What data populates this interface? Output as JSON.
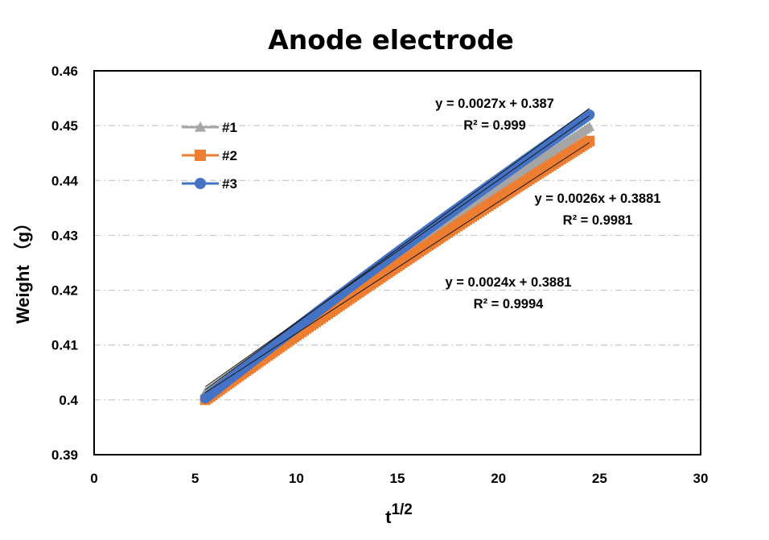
{
  "chart_data": {
    "type": "scatter",
    "title": "Anode electrode",
    "xlabel_base": "t",
    "xlabel_sup": "1/2",
    "ylabel": "Weight （g）",
    "xlim": [
      0,
      30
    ],
    "ylim": [
      0.39,
      0.46
    ],
    "xticks": [
      0,
      5,
      10,
      15,
      20,
      25,
      30
    ],
    "yticks": [
      0.39,
      0.4,
      0.41,
      0.42,
      0.43,
      0.44,
      0.45,
      0.46
    ],
    "ytick_labels": [
      "0.39",
      "0.4",
      "0.41",
      "0.42",
      "0.43",
      "0.44",
      "0.45",
      "0.46"
    ],
    "grid": "horizontal dash-dot",
    "legend_position": "top-left",
    "x_range": [
      5.5,
      24.5
    ],
    "series": [
      {
        "name": "#1",
        "marker": "triangle",
        "color": "#a5a5a5",
        "y_start": 0.4014,
        "y_end": 0.4498,
        "trend": {
          "slope": 0.0027,
          "intercept": 0.387
        },
        "equation": "y = 0.0027x + 0.387",
        "r2": "R² = 0.999"
      },
      {
        "name": "#2",
        "marker": "square",
        "color": "#ed7d31",
        "y_start": 0.4,
        "y_end": 0.4472,
        "trend": {
          "slope": 0.0024,
          "intercept": 0.3881
        },
        "equation": "y = 0.0024x + 0.3881",
        "r2": "R² = 0.9994"
      },
      {
        "name": "#3",
        "marker": "circle",
        "color": "#4472c4",
        "y_start": 0.4003,
        "y_end": 0.452,
        "trend": {
          "slope": 0.0026,
          "intercept": 0.3881
        },
        "equation": "y = 0.0026x + 0.3881",
        "r2": "R² = 0.9981"
      }
    ]
  }
}
